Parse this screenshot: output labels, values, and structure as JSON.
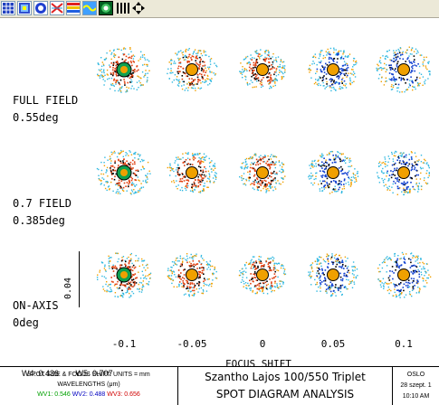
{
  "toolbar": {
    "buttons": [
      "grid-icon",
      "layers-icon",
      "color-select-icon",
      "crossed-rays-icon",
      "stripes-icon",
      "wave-icon",
      "target-icon",
      "bars-icon",
      "move-arrows-icon"
    ]
  },
  "rows": [
    {
      "field": "FULL FIELD",
      "angle": "0.55deg"
    },
    {
      "field": "0.7 FIELD",
      "angle": "0.385deg"
    },
    {
      "field": "ON-AXIS",
      "angle": "0deg"
    }
  ],
  "focus_shifts": [
    "-0.1",
    "-0.05",
    "0",
    "0.05",
    "0.1"
  ],
  "xaxis_title": "FOCUS SHIFT",
  "scale_label": "0.04",
  "weights": {
    "w4": "W4: 0.436",
    "w5": "W5: 0.707"
  },
  "footer": {
    "units_line": "SPOT SIZE & FOCUS SHIFT: UNITS = mm",
    "wavelengths_line": "WAVELENGTHS (μm)",
    "wv1": "WV1: 0.546",
    "wv2": "WV2: 0.488",
    "wv3": "WV3: 0.656",
    "title1": "Szantho Lajos 100/550 Triplet",
    "title2": "SPOT DIAGRAM ANALYSIS",
    "program": "OSLO",
    "date": "28 szept. 1",
    "time": "10:10 AM"
  },
  "colors": {
    "wv1": "#00a000",
    "wv2": "#0000c0",
    "wv3": "#d00000",
    "spot_orange": "#f0a000",
    "spot_cyan": "#30b8e0",
    "spot_blue": "#1040d0",
    "spot_red": "#e04010",
    "spot_green": "#10a050"
  }
}
